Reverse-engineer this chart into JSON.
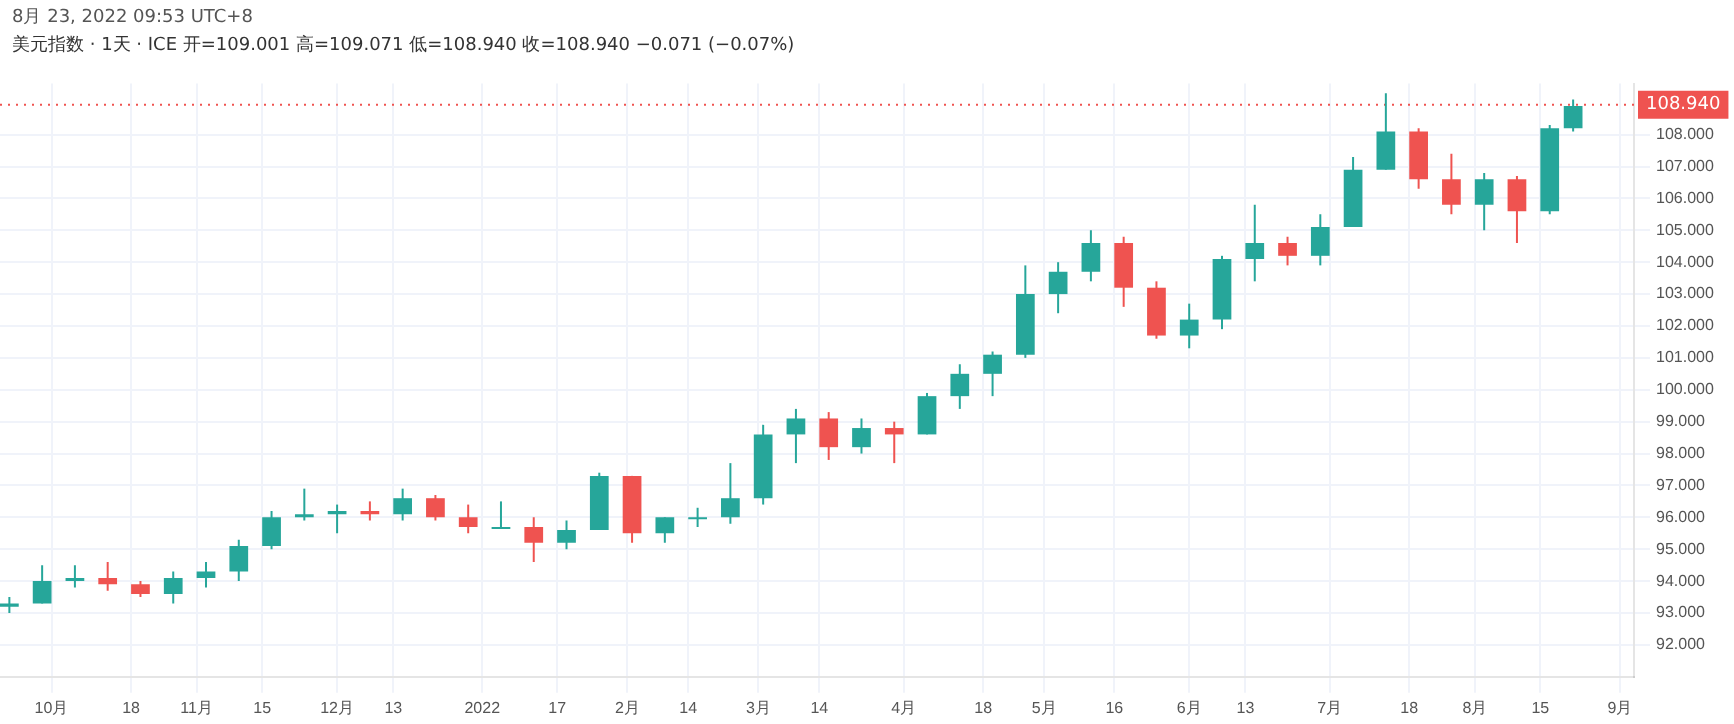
{
  "chart_data": {
    "type": "candlestick",
    "title": "8月 23, 2022 09:53 UTC+8",
    "subtitle": "美元指数 · 1天 · ICE  开=109.001 高=109.071 低=108.940 收=108.940 −0.071 (−0.07%)",
    "x": [
      "2021-09-22",
      "2021-09-29",
      "2021-10-06",
      "2021-10-13",
      "2021-10-20",
      "2021-10-27",
      "2021-11-03",
      "2021-11-10",
      "2021-11-17",
      "2021-11-24",
      "2021-12-01",
      "2021-12-08",
      "2021-12-15",
      "2021-12-22",
      "2021-12-29",
      "2022-01-05",
      "2022-01-12",
      "2022-01-19",
      "2022-01-26",
      "2022-02-02",
      "2022-02-09",
      "2022-02-16",
      "2022-02-23",
      "2022-03-02",
      "2022-03-09",
      "2022-03-16",
      "2022-03-23",
      "2022-03-30",
      "2022-04-06",
      "2022-04-13",
      "2022-04-20",
      "2022-04-27",
      "2022-05-04",
      "2022-05-11",
      "2022-05-18",
      "2022-05-25",
      "2022-06-01",
      "2022-06-08",
      "2022-06-15",
      "2022-06-22",
      "2022-06-29",
      "2022-07-06",
      "2022-07-13",
      "2022-07-20",
      "2022-07-27",
      "2022-08-03",
      "2022-08-10",
      "2022-08-17",
      "2022-08-22"
    ],
    "ohlc": [
      [
        93.2,
        93.5,
        93.0,
        93.3
      ],
      [
        93.3,
        94.5,
        93.3,
        94.0
      ],
      [
        94.0,
        94.5,
        93.8,
        94.1
      ],
      [
        94.1,
        94.6,
        93.7,
        93.9
      ],
      [
        93.9,
        94.0,
        93.5,
        93.6
      ],
      [
        93.6,
        94.3,
        93.3,
        94.1
      ],
      [
        94.1,
        94.6,
        93.8,
        94.3
      ],
      [
        94.3,
        95.3,
        94.0,
        95.1
      ],
      [
        95.1,
        96.2,
        95.0,
        96.0
      ],
      [
        96.0,
        96.9,
        95.9,
        96.1
      ],
      [
        96.1,
        96.4,
        95.5,
        96.2
      ],
      [
        96.2,
        96.5,
        95.9,
        96.1
      ],
      [
        96.1,
        96.9,
        95.9,
        96.6
      ],
      [
        96.6,
        96.7,
        95.9,
        96.0
      ],
      [
        96.0,
        96.4,
        95.5,
        95.7
      ],
      [
        95.7,
        96.5,
        95.7,
        95.7
      ],
      [
        95.7,
        96.0,
        94.6,
        95.2
      ],
      [
        95.2,
        95.9,
        95.0,
        95.6
      ],
      [
        95.6,
        97.4,
        95.6,
        97.3
      ],
      [
        97.3,
        97.3,
        95.2,
        95.5
      ],
      [
        95.5,
        96.0,
        95.2,
        96.0
      ],
      [
        96.0,
        96.3,
        95.7,
        96.0
      ],
      [
        96.0,
        97.7,
        95.8,
        96.6
      ],
      [
        96.6,
        98.9,
        96.4,
        98.6
      ],
      [
        98.6,
        99.4,
        97.7,
        99.1
      ],
      [
        99.1,
        99.3,
        97.8,
        98.2
      ],
      [
        98.2,
        99.1,
        98.0,
        98.8
      ],
      [
        98.8,
        99.0,
        97.7,
        98.6
      ],
      [
        98.6,
        99.9,
        98.6,
        99.8
      ],
      [
        99.8,
        100.8,
        99.4,
        100.5
      ],
      [
        100.5,
        101.2,
        99.8,
        101.1
      ],
      [
        101.1,
        103.9,
        101.0,
        103.0
      ],
      [
        103.0,
        104.0,
        102.4,
        103.7
      ],
      [
        103.7,
        105.0,
        103.4,
        104.6
      ],
      [
        104.6,
        104.8,
        102.6,
        103.2
      ],
      [
        103.2,
        103.4,
        101.6,
        101.7
      ],
      [
        101.7,
        102.7,
        101.3,
        102.2
      ],
      [
        102.2,
        104.2,
        101.9,
        104.1
      ],
      [
        104.1,
        105.8,
        103.4,
        104.6
      ],
      [
        104.6,
        104.8,
        103.9,
        104.2
      ],
      [
        104.2,
        105.5,
        103.9,
        105.1
      ],
      [
        105.1,
        107.3,
        105.1,
        106.9
      ],
      [
        106.9,
        109.3,
        106.9,
        108.1
      ],
      [
        108.1,
        108.2,
        106.3,
        106.6
      ],
      [
        106.6,
        107.4,
        105.5,
        105.8
      ],
      [
        105.8,
        106.8,
        105.0,
        106.6
      ],
      [
        106.6,
        106.7,
        104.6,
        105.6
      ],
      [
        105.6,
        108.3,
        105.5,
        108.2
      ],
      [
        108.2,
        109.1,
        108.1,
        108.9
      ]
    ],
    "colors": [
      "#26a69a",
      "#26a69a",
      "#26a69a",
      "#ef5350",
      "#ef5350",
      "#26a69a",
      "#26a69a",
      "#26a69a",
      "#26a69a",
      "#26a69a",
      "#26a69a",
      "#ef5350",
      "#26a69a",
      "#ef5350",
      "#ef5350",
      "#26a69a",
      "#ef5350",
      "#26a69a",
      "#26a69a",
      "#ef5350",
      "#26a69a",
      "#26a69a",
      "#26a69a",
      "#26a69a",
      "#26a69a",
      "#ef5350",
      "#26a69a",
      "#ef5350",
      "#26a69a",
      "#26a69a",
      "#26a69a",
      "#26a69a",
      "#26a69a",
      "#26a69a",
      "#ef5350",
      "#ef5350",
      "#26a69a",
      "#26a69a",
      "#26a69a",
      "#ef5350",
      "#26a69a",
      "#26a69a",
      "#26a69a",
      "#ef5350",
      "#ef5350",
      "#26a69a",
      "#ef5350",
      "#26a69a",
      "#26a69a"
    ],
    "xlim": [
      "2021-09-20",
      "2022-09-04"
    ],
    "xticks": [
      {
        "value": "2021-10-01",
        "label": "10月"
      },
      {
        "value": "2021-10-18",
        "label": "18"
      },
      {
        "value": "2021-11-01",
        "label": "11月"
      },
      {
        "value": "2021-11-15",
        "label": "15"
      },
      {
        "value": "2021-12-01",
        "label": "12月"
      },
      {
        "value": "2021-12-13",
        "label": "13"
      },
      {
        "value": "2022-01-01",
        "label": "2022"
      },
      {
        "value": "2022-01-17",
        "label": "17"
      },
      {
        "value": "2022-02-01",
        "label": "2月"
      },
      {
        "value": "2022-02-14",
        "label": "14"
      },
      {
        "value": "2022-03-01",
        "label": "3月"
      },
      {
        "value": "2022-03-14",
        "label": "14"
      },
      {
        "value": "2022-04-01",
        "label": "4月"
      },
      {
        "value": "2022-04-18",
        "label": "18"
      },
      {
        "value": "2022-05-01",
        "label": "5月"
      },
      {
        "value": "2022-05-16",
        "label": "16"
      },
      {
        "value": "2022-06-01",
        "label": "6月"
      },
      {
        "value": "2022-06-13",
        "label": "13"
      },
      {
        "value": "2022-07-01",
        "label": "7月"
      },
      {
        "value": "2022-07-18",
        "label": "18"
      },
      {
        "value": "2022-08-01",
        "label": "8月"
      },
      {
        "value": "2022-08-15",
        "label": "15"
      },
      {
        "value": "2022-09-01",
        "label": "9月"
      }
    ],
    "ylim": [
      91,
      109.6
    ],
    "yticks": [
      {
        "value": 92,
        "label": "92.000"
      },
      {
        "value": 93,
        "label": "93.000"
      },
      {
        "value": 94,
        "label": "94.000"
      },
      {
        "value": 95,
        "label": "95.000"
      },
      {
        "value": 96,
        "label": "96.000"
      },
      {
        "value": 97,
        "label": "97.000"
      },
      {
        "value": 98,
        "label": "98.000"
      },
      {
        "value": 99,
        "label": "99.000"
      },
      {
        "value": 100,
        "label": "100.000"
      },
      {
        "value": 101,
        "label": "101.000"
      },
      {
        "value": 102,
        "label": "102.000"
      },
      {
        "value": 103,
        "label": "103.000"
      },
      {
        "value": 104,
        "label": "104.000"
      },
      {
        "value": 105,
        "label": "105.000"
      },
      {
        "value": 106,
        "label": "106.000"
      },
      {
        "value": 107,
        "label": "107.000"
      },
      {
        "value": 108,
        "label": "108.000"
      }
    ],
    "ref_lines": [
      {
        "axis": "y",
        "value": 108.94,
        "label": "108.940",
        "color": "#ef5350",
        "line_style": "dotted"
      }
    ],
    "grid": true,
    "legend": false
  }
}
